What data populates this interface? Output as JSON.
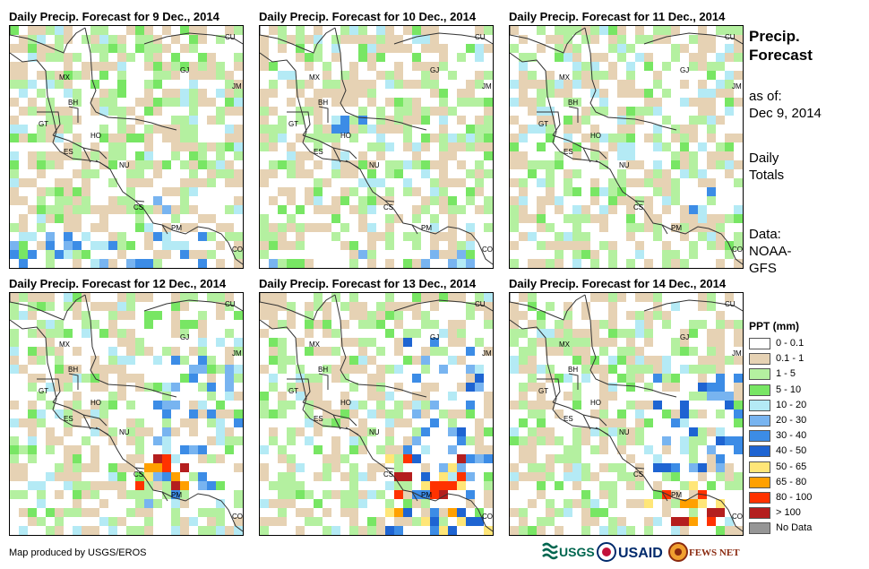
{
  "panels": [
    {
      "title": "Daily Precip. Forecast for 9 Dec., 2014"
    },
    {
      "title": "Daily Precip. Forecast for 10 Dec., 2014"
    },
    {
      "title": "Daily Precip. Forecast for 11 Dec., 2014"
    },
    {
      "title": "Daily Precip. Forecast for 12 Dec., 2014"
    },
    {
      "title": "Daily Precip. Forecast for 13 Dec., 2014"
    },
    {
      "title": "Daily Precip. Forecast for 14 Dec., 2014"
    }
  ],
  "country_labels": [
    "CU",
    "MX",
    "GJ",
    "JM",
    "BH",
    "GT",
    "HO",
    "ES",
    "NU",
    "CS",
    "PM",
    "CO"
  ],
  "sidebar": {
    "title": "Precip.\nForecast",
    "as_of_label": "as of:",
    "as_of_date": "Dec 9, 2014",
    "totals_label": "Daily\nTotals",
    "data_label": "Data:\nNOAA-\nGFS"
  },
  "legend": {
    "title": "PPT (mm)",
    "items": [
      {
        "label": "0 - 0.1",
        "color": "#ffffff"
      },
      {
        "label": "0.1 - 1",
        "color": "#e6d2b4"
      },
      {
        "label": "1 - 5",
        "color": "#b4f0a0"
      },
      {
        "label": "5 - 10",
        "color": "#78e664"
      },
      {
        "label": "10 - 20",
        "color": "#b4eaf5"
      },
      {
        "label": "20 - 30",
        "color": "#78b4f0"
      },
      {
        "label": "30 - 40",
        "color": "#3c8ce6"
      },
      {
        "label": "40 - 50",
        "color": "#1e64d2"
      },
      {
        "label": "50 - 65",
        "color": "#ffe678"
      },
      {
        "label": "65 - 80",
        "color": "#ffa000"
      },
      {
        "label": "80 - 100",
        "color": "#ff3200"
      },
      {
        "label": "> 100",
        "color": "#b41e1e"
      },
      {
        "label": "No Data",
        "color": "#969696"
      }
    ]
  },
  "footer": {
    "credit": "Map produced by USGS/EROS"
  },
  "logos": {
    "usgs": "USGS",
    "usaid": "USAID",
    "fews": "FEWS NET"
  }
}
